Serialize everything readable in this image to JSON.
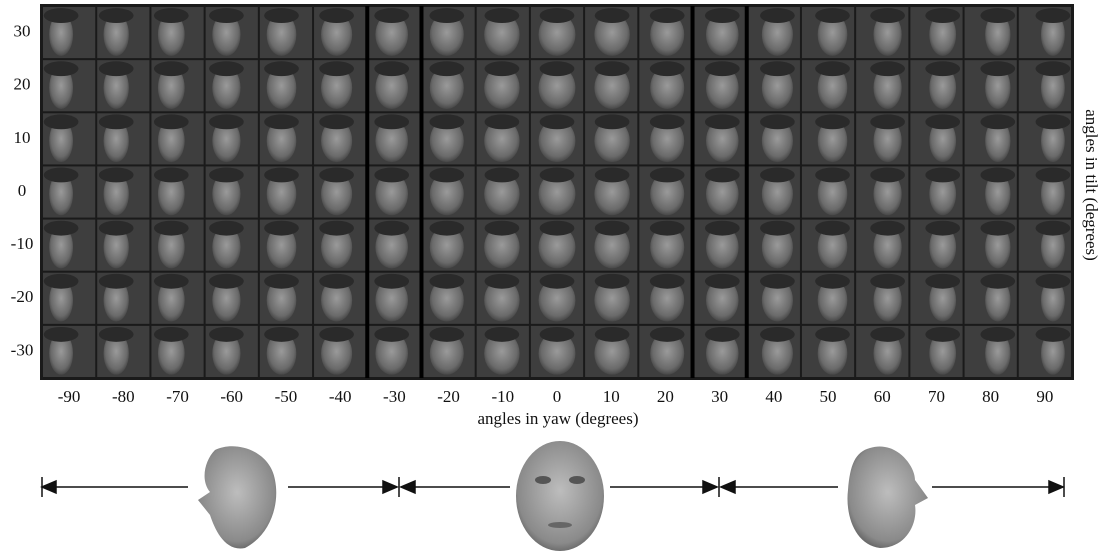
{
  "figure": {
    "tilt_labels": [
      30,
      20,
      10,
      0,
      -10,
      -20,
      -30
    ],
    "yaw_labels": [
      -90,
      -80,
      -70,
      -60,
      -50,
      -40,
      -30,
      -20,
      -10,
      0,
      10,
      20,
      30,
      40,
      50,
      60,
      70,
      80,
      90
    ],
    "x_axis_label": "angles in yaw (degrees)",
    "y_axis_label": "angles in tilt (degrees)"
  }
}
